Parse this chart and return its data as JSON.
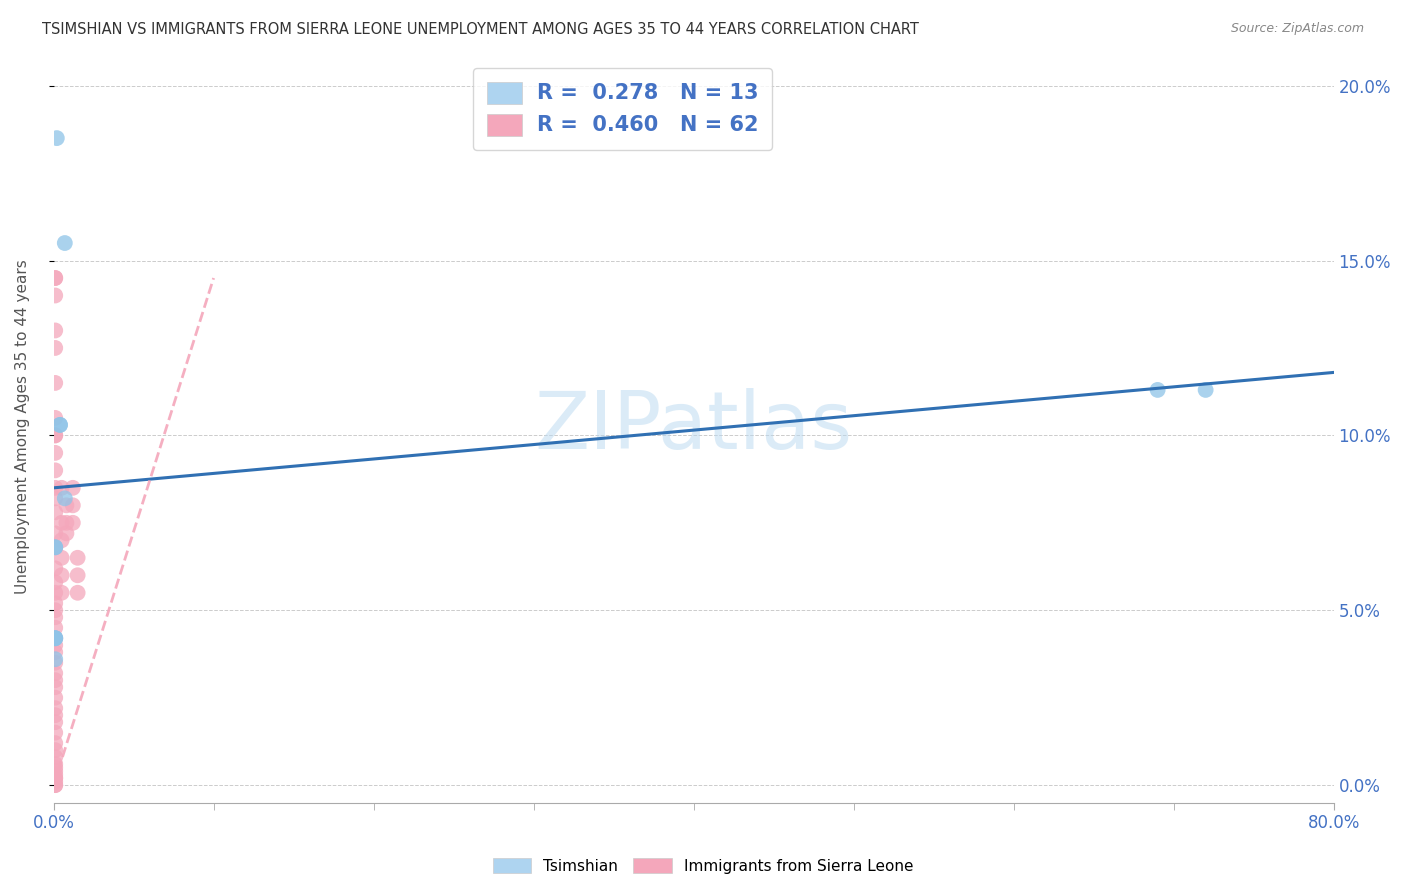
{
  "title": "TSIMSHIAN VS IMMIGRANTS FROM SIERRA LEONE UNEMPLOYMENT AMONG AGES 35 TO 44 YEARS CORRELATION CHART",
  "source": "Source: ZipAtlas.com",
  "ylabel": "Unemployment Among Ages 35 to 44 years",
  "xlim": [
    0.0,
    0.8
  ],
  "ylim": [
    -0.005,
    0.21
  ],
  "xtick_left": 0.0,
  "xtick_right": 0.8,
  "xtick_left_label": "0.0%",
  "xtick_right_label": "80.0%",
  "yticks": [
    0.0,
    0.05,
    0.1,
    0.15,
    0.2
  ],
  "yticklabels": [
    "0.0%",
    "5.0%",
    "10.0%",
    "15.0%",
    "20.0%"
  ],
  "watermark": "ZIPatlas",
  "blue_color": "#8ec4e8",
  "pink_color": "#f4a7bb",
  "blue_fill_color": "#aed4f0",
  "blue_line_color": "#3070b3",
  "pink_line_color": "#e06090",
  "tick_color": "#4472c4",
  "legend1_R": "0.278",
  "legend1_N": "13",
  "legend2_R": "0.460",
  "legend2_N": "62",
  "tsimshian_x": [
    0.002,
    0.007,
    0.004,
    0.004,
    0.001,
    0.001,
    0.001,
    0.001,
    0.001,
    0.001,
    0.007,
    0.69,
    0.72
  ],
  "tsimshian_y": [
    0.185,
    0.155,
    0.103,
    0.103,
    0.068,
    0.068,
    0.042,
    0.036,
    0.042,
    0.042,
    0.082,
    0.113,
    0.113
  ],
  "sierra_x": [
    0.001,
    0.001,
    0.001,
    0.001,
    0.001,
    0.001,
    0.001,
    0.001,
    0.001,
    0.001,
    0.001,
    0.001,
    0.001,
    0.001,
    0.001,
    0.001,
    0.001,
    0.001,
    0.001,
    0.001,
    0.001,
    0.001,
    0.001,
    0.001,
    0.001,
    0.001,
    0.001,
    0.001,
    0.001,
    0.001,
    0.001,
    0.001,
    0.001,
    0.001,
    0.001,
    0.001,
    0.001,
    0.001,
    0.001,
    0.001,
    0.001,
    0.001,
    0.005,
    0.005,
    0.005,
    0.005,
    0.005,
    0.005,
    0.008,
    0.008,
    0.008,
    0.012,
    0.012,
    0.012,
    0.015,
    0.015,
    0.015,
    0.001,
    0.001,
    0.001,
    0.001,
    0.001
  ],
  "sierra_y": [
    0.145,
    0.145,
    0.14,
    0.13,
    0.125,
    0.115,
    0.105,
    0.1,
    0.1,
    0.095,
    0.09,
    0.085,
    0.082,
    0.078,
    0.072,
    0.068,
    0.062,
    0.058,
    0.055,
    0.052,
    0.05,
    0.048,
    0.045,
    0.042,
    0.04,
    0.038,
    0.035,
    0.032,
    0.03,
    0.028,
    0.025,
    0.022,
    0.02,
    0.018,
    0.015,
    0.012,
    0.01,
    0.008,
    0.006,
    0.005,
    0.003,
    0.001,
    0.085,
    0.075,
    0.07,
    0.065,
    0.06,
    0.055,
    0.08,
    0.075,
    0.072,
    0.085,
    0.08,
    0.075,
    0.065,
    0.06,
    0.055,
    0.0,
    0.0,
    0.002,
    0.002,
    0.004
  ],
  "blue_line_x0": 0.0,
  "blue_line_x1": 0.8,
  "blue_line_y0": 0.085,
  "blue_line_y1": 0.118,
  "pink_line_x0": 0.0,
  "pink_line_x1": 0.1,
  "pink_line_y0": 0.0,
  "pink_line_y1": 0.145
}
